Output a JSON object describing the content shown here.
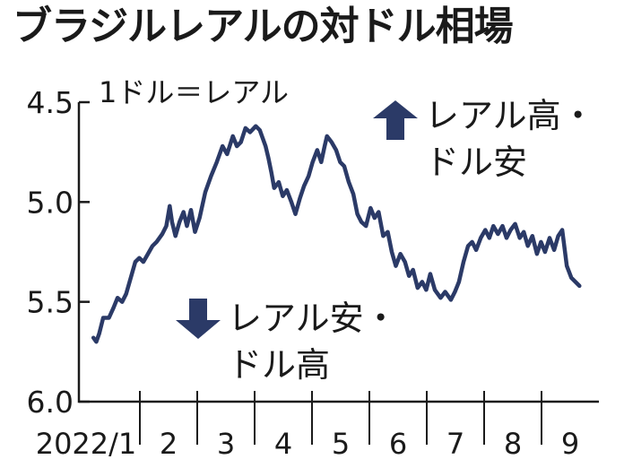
{
  "title": "ブラジルレアルの対ドル相場",
  "unit_note": "1ドル＝レアル",
  "callouts": [
    {
      "lines": [
        "レアル高・",
        "ドル安"
      ],
      "arrow": "up"
    },
    {
      "lines": [
        "レアル安・",
        "ドル高"
      ],
      "arrow": "down"
    }
  ],
  "colors": {
    "line": "#2b3a67",
    "arrow": "#2b3a67",
    "axis": "#1a1a1a"
  },
  "chart_data": {
    "type": "line",
    "title": "ブラジルレアルの対ドル相場",
    "y_axis": {
      "ticks": [
        4.5,
        5.0,
        5.5,
        6.0
      ],
      "tick_labels": [
        "4.5",
        "5.0",
        "5.5",
        "6.0"
      ],
      "range": [
        4.5,
        6.0
      ],
      "inverted": true
    },
    "x_axis": {
      "ticks": [
        "2022/1",
        "2",
        "3",
        "4",
        "5",
        "6",
        "7",
        "8",
        "9"
      ]
    },
    "grid": false,
    "series": [
      {
        "values": [
          [
            0.05,
            5.68
          ],
          [
            0.1,
            5.7
          ],
          [
            0.15,
            5.66
          ],
          [
            0.22,
            5.58
          ],
          [
            0.32,
            5.58
          ],
          [
            0.4,
            5.53
          ],
          [
            0.47,
            5.48
          ],
          [
            0.55,
            5.5
          ],
          [
            0.62,
            5.46
          ],
          [
            0.72,
            5.36
          ],
          [
            0.78,
            5.3
          ],
          [
            0.85,
            5.28
          ],
          [
            0.92,
            5.3
          ],
          [
            1.0,
            5.26
          ],
          [
            1.08,
            5.22
          ],
          [
            1.15,
            5.2
          ],
          [
            1.25,
            5.16
          ],
          [
            1.32,
            5.12
          ],
          [
            1.38,
            5.02
          ],
          [
            1.42,
            5.1
          ],
          [
            1.48,
            5.17
          ],
          [
            1.55,
            5.1
          ],
          [
            1.62,
            5.05
          ],
          [
            1.68,
            5.12
          ],
          [
            1.75,
            5.04
          ],
          [
            1.82,
            5.15
          ],
          [
            1.9,
            5.08
          ],
          [
            2.0,
            4.95
          ],
          [
            2.1,
            4.87
          ],
          [
            2.2,
            4.8
          ],
          [
            2.3,
            4.72
          ],
          [
            2.38,
            4.76
          ],
          [
            2.48,
            4.67
          ],
          [
            2.55,
            4.72
          ],
          [
            2.62,
            4.7
          ],
          [
            2.7,
            4.63
          ],
          [
            2.78,
            4.65
          ],
          [
            2.88,
            4.62
          ],
          [
            2.95,
            4.64
          ],
          [
            3.0,
            4.68
          ],
          [
            3.05,
            4.72
          ],
          [
            3.1,
            4.78
          ],
          [
            3.15,
            4.85
          ],
          [
            3.2,
            4.93
          ],
          [
            3.28,
            4.9
          ],
          [
            3.35,
            4.97
          ],
          [
            3.42,
            4.94
          ],
          [
            3.5,
            5.0
          ],
          [
            3.57,
            5.06
          ],
          [
            3.65,
            4.98
          ],
          [
            3.72,
            4.92
          ],
          [
            3.8,
            4.87
          ],
          [
            3.87,
            4.8
          ],
          [
            3.95,
            4.74
          ],
          [
            4.02,
            4.8
          ],
          [
            4.08,
            4.72
          ],
          [
            4.12,
            4.67
          ],
          [
            4.2,
            4.7
          ],
          [
            4.28,
            4.74
          ],
          [
            4.35,
            4.8
          ],
          [
            4.42,
            4.82
          ],
          [
            4.5,
            4.9
          ],
          [
            4.58,
            4.96
          ],
          [
            4.65,
            5.06
          ],
          [
            4.72,
            5.1
          ],
          [
            4.8,
            5.12
          ],
          [
            4.88,
            5.03
          ],
          [
            4.95,
            5.08
          ],
          [
            5.02,
            5.05
          ],
          [
            5.1,
            5.17
          ],
          [
            5.18,
            5.15
          ],
          [
            5.25,
            5.25
          ],
          [
            5.32,
            5.32
          ],
          [
            5.4,
            5.26
          ],
          [
            5.48,
            5.3
          ],
          [
            5.55,
            5.37
          ],
          [
            5.62,
            5.34
          ],
          [
            5.7,
            5.43
          ],
          [
            5.78,
            5.4
          ],
          [
            5.85,
            5.44
          ],
          [
            5.92,
            5.36
          ],
          [
            6.0,
            5.44
          ],
          [
            6.1,
            5.48
          ],
          [
            6.18,
            5.45
          ],
          [
            6.28,
            5.49
          ],
          [
            6.35,
            5.45
          ],
          [
            6.42,
            5.4
          ],
          [
            6.5,
            5.3
          ],
          [
            6.58,
            5.22
          ],
          [
            6.65,
            5.2
          ],
          [
            6.72,
            5.24
          ],
          [
            6.8,
            5.18
          ],
          [
            6.88,
            5.14
          ],
          [
            6.95,
            5.18
          ],
          [
            7.02,
            5.12
          ],
          [
            7.1,
            5.16
          ],
          [
            7.18,
            5.12
          ],
          [
            7.25,
            5.18
          ],
          [
            7.32,
            5.14
          ],
          [
            7.4,
            5.11
          ],
          [
            7.48,
            5.18
          ],
          [
            7.55,
            5.15
          ],
          [
            7.62,
            5.22
          ],
          [
            7.7,
            5.17
          ],
          [
            7.78,
            5.26
          ],
          [
            7.85,
            5.2
          ],
          [
            7.92,
            5.25
          ],
          [
            8.0,
            5.18
          ],
          [
            8.08,
            5.24
          ],
          [
            8.15,
            5.17
          ],
          [
            8.22,
            5.14
          ],
          [
            8.3,
            5.32
          ],
          [
            8.38,
            5.38
          ],
          [
            8.45,
            5.4
          ],
          [
            8.52,
            5.42
          ]
        ]
      }
    ]
  }
}
